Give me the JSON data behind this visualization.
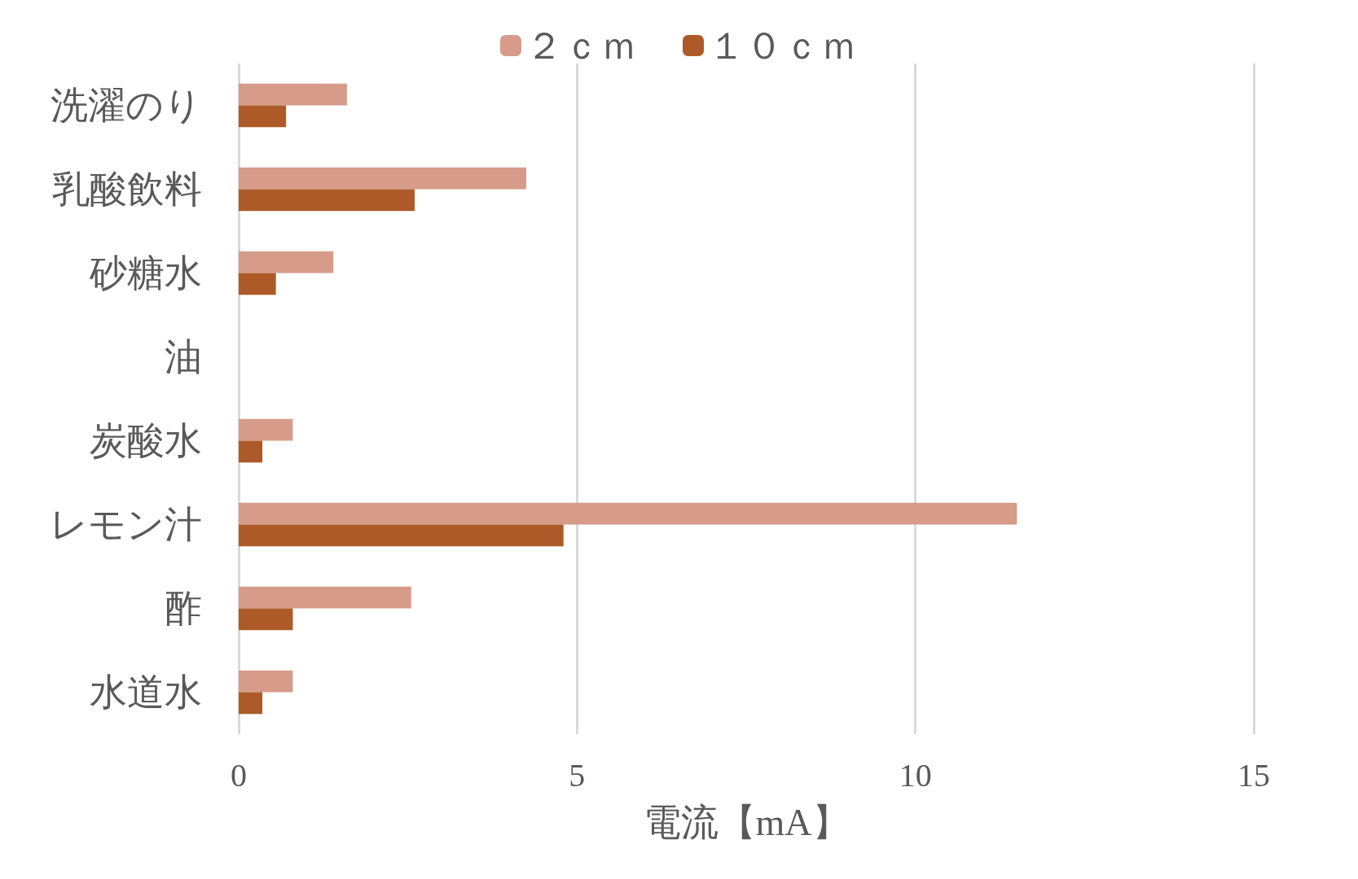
{
  "chart_data": {
    "type": "bar",
    "orientation": "horizontal",
    "xlabel": "電流【mA】",
    "categories": [
      "洗濯のり",
      "乳酸飲料",
      "砂糖水",
      "油",
      "炭酸水",
      "レモン汁",
      "酢",
      "水道水"
    ],
    "series": [
      {
        "name": "２ｃｍ",
        "color": "#d69c89",
        "values": [
          1.6,
          4.25,
          1.4,
          0,
          0.8,
          11.5,
          2.55,
          0.8
        ]
      },
      {
        "name": "１０ｃｍ",
        "color": "#ad5a28",
        "values": [
          0.7,
          2.6,
          0.55,
          0,
          0.35,
          4.8,
          0.8,
          0.35
        ]
      }
    ],
    "xlim": [
      0,
      15
    ],
    "xticks": [
      0,
      5,
      10,
      15
    ],
    "grid": "x",
    "legend": "top"
  }
}
